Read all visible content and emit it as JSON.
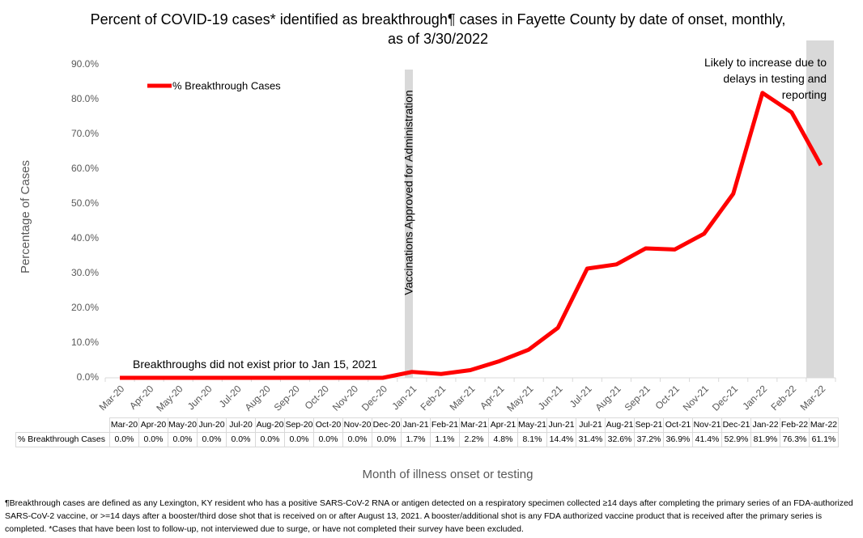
{
  "chart_data": {
    "type": "line",
    "title": "Percent of COVID-19 cases* identified as breakthrough¶ cases in Fayette County by date of onset, monthly, as of 3/30/2022",
    "x_label": "Month of illness onset or testing",
    "y_label": "Percentage of Cases",
    "categories": [
      "Mar-20",
      "Apr-20",
      "May-20",
      "Jun-20",
      "Jul-20",
      "Aug-20",
      "Sep-20",
      "Oct-20",
      "Nov-20",
      "Dec-20",
      "Jan-21",
      "Feb-21",
      "Mar-21",
      "Apr-21",
      "May-21",
      "Jun-21",
      "Jul-21",
      "Aug-21",
      "Sep-21",
      "Oct-21",
      "Nov-21",
      "Dec-21",
      "Jan-22",
      "Feb-22",
      "Mar-22"
    ],
    "series": [
      {
        "name": "% Breakthrough Cases",
        "color": "#ff0000",
        "values": [
          0,
          0,
          0,
          0,
          0,
          0,
          0,
          0,
          0,
          0,
          1.7,
          1.1,
          2.2,
          4.8,
          8.1,
          14.4,
          31.4,
          32.6,
          37.2,
          36.9,
          41.4,
          52.9,
          81.9,
          76.3,
          61.1
        ],
        "value_labels": [
          "0.0%",
          "0.0%",
          "0.0%",
          "0.0%",
          "0.0%",
          "0.0%",
          "0.0%",
          "0.0%",
          "0.0%",
          "0.0%",
          "1.7%",
          "1.1%",
          "2.2%",
          "4.8%",
          "8.1%",
          "14.4%",
          "31.4%",
          "32.6%",
          "37.2%",
          "36.9%",
          "41.4%",
          "52.9%",
          "81.9%",
          "76.3%",
          "61.1%"
        ]
      }
    ],
    "ylim": [
      0,
      90
    ],
    "yticks": [
      {
        "value": 0,
        "label": "0.0%"
      },
      {
        "value": 10,
        "label": "10.0%"
      },
      {
        "value": 20,
        "label": "20.0%"
      },
      {
        "value": 30,
        "label": "30.0%"
      },
      {
        "value": 40,
        "label": "40.0%"
      },
      {
        "value": 50,
        "label": "50.0%"
      },
      {
        "value": 60,
        "label": "60.0%"
      },
      {
        "value": 70,
        "label": "70.0%"
      },
      {
        "value": 80,
        "label": "80.0%"
      },
      {
        "value": 90,
        "label": "90.0%"
      }
    ],
    "grid": false,
    "legend": "top-left",
    "annotations": [
      "Vaccinations Approved for Administration",
      "Likely to increase due to delays in testing and reporting",
      "Breakthroughs did not exist prior to Jan 15, 2021"
    ]
  },
  "footnote": "¶Breakthrough cases are defined as any Lexington, KY resident who has a positive SARS-CoV-2 RNA or antigen detected on a respiratory specimen collected ≥14 days after completing the primary series of an FDA-authorized SARS-CoV-2 vaccine, or >=14 days after a booster/third dose shot that is received on or after August 13, 2021.  A booster/additional shot is any FDA authorized vaccine product that is received after the primary series is completed. *Cases that have been lost to follow-up, not interviewed due to surge, or have not completed their survey have been excluded."
}
